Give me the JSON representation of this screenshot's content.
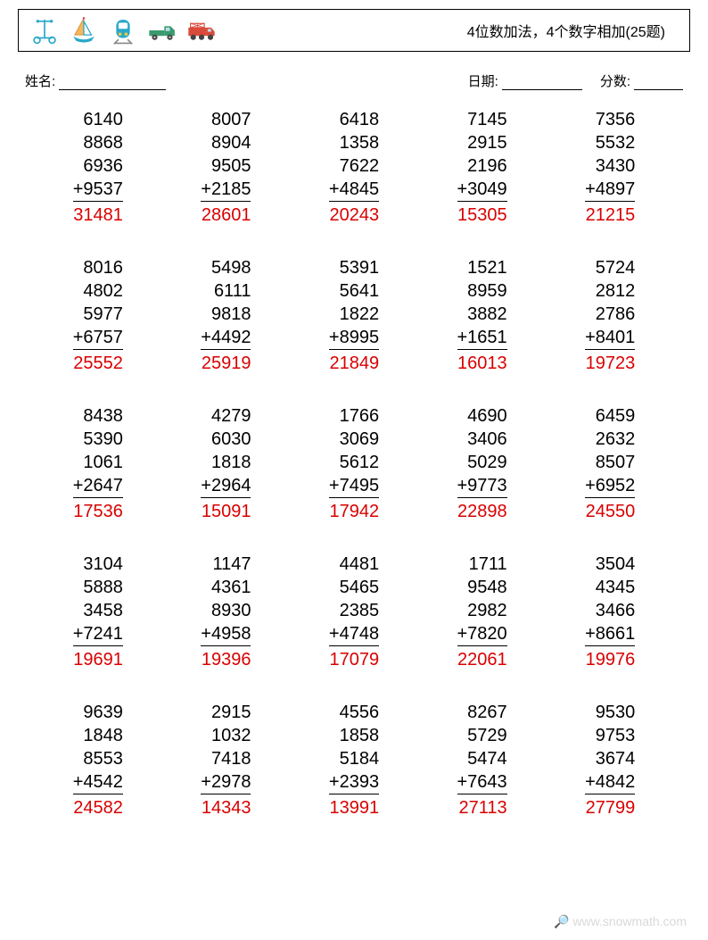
{
  "header": {
    "title": "4位数加法，4个数字相加(25题)"
  },
  "info": {
    "name_label": "姓名:",
    "date_label": "日期:",
    "score_label": "分数:"
  },
  "style": {
    "answer_color": "#d90000",
    "text_color": "#000000",
    "number_fontsize": 20,
    "watermark_color": "#d9d9d9"
  },
  "problems": [
    {
      "nums": [
        "6140",
        "8868",
        "6936",
        "9537"
      ],
      "ans": "31481"
    },
    {
      "nums": [
        "8007",
        "8904",
        "9505",
        "2185"
      ],
      "ans": "28601"
    },
    {
      "nums": [
        "6418",
        "1358",
        "7622",
        "4845"
      ],
      "ans": "20243"
    },
    {
      "nums": [
        "7145",
        "2915",
        "2196",
        "3049"
      ],
      "ans": "15305"
    },
    {
      "nums": [
        "7356",
        "5532",
        "3430",
        "4897"
      ],
      "ans": "21215"
    },
    {
      "nums": [
        "8016",
        "4802",
        "5977",
        "6757"
      ],
      "ans": "25552"
    },
    {
      "nums": [
        "5498",
        "6111",
        "9818",
        "4492"
      ],
      "ans": "25919"
    },
    {
      "nums": [
        "5391",
        "5641",
        "1822",
        "8995"
      ],
      "ans": "21849"
    },
    {
      "nums": [
        "1521",
        "8959",
        "3882",
        "1651"
      ],
      "ans": "16013"
    },
    {
      "nums": [
        "5724",
        "2812",
        "2786",
        "8401"
      ],
      "ans": "19723"
    },
    {
      "nums": [
        "8438",
        "5390",
        "1061",
        "2647"
      ],
      "ans": "17536"
    },
    {
      "nums": [
        "4279",
        "6030",
        "1818",
        "2964"
      ],
      "ans": "15091"
    },
    {
      "nums": [
        "1766",
        "3069",
        "5612",
        "7495"
      ],
      "ans": "17942"
    },
    {
      "nums": [
        "4690",
        "3406",
        "5029",
        "9773"
      ],
      "ans": "22898"
    },
    {
      "nums": [
        "6459",
        "2632",
        "8507",
        "6952"
      ],
      "ans": "24550"
    },
    {
      "nums": [
        "3104",
        "5888",
        "3458",
        "7241"
      ],
      "ans": "19691"
    },
    {
      "nums": [
        "1147",
        "4361",
        "8930",
        "4958"
      ],
      "ans": "19396"
    },
    {
      "nums": [
        "4481",
        "5465",
        "2385",
        "4748"
      ],
      "ans": "17079"
    },
    {
      "nums": [
        "1711",
        "9548",
        "2982",
        "7820"
      ],
      "ans": "22061"
    },
    {
      "nums": [
        "3504",
        "4345",
        "3466",
        "8661"
      ],
      "ans": "19976"
    },
    {
      "nums": [
        "9639",
        "1848",
        "8553",
        "4542"
      ],
      "ans": "24582"
    },
    {
      "nums": [
        "2915",
        "1032",
        "7418",
        "2978"
      ],
      "ans": "14343"
    },
    {
      "nums": [
        "4556",
        "1858",
        "5184",
        "2393"
      ],
      "ans": "13991"
    },
    {
      "nums": [
        "8267",
        "5729",
        "5474",
        "7643"
      ],
      "ans": "27113"
    },
    {
      "nums": [
        "9530",
        "9753",
        "3674",
        "4842"
      ],
      "ans": "27799"
    }
  ],
  "watermark": "🔎 www.snowmath.com"
}
